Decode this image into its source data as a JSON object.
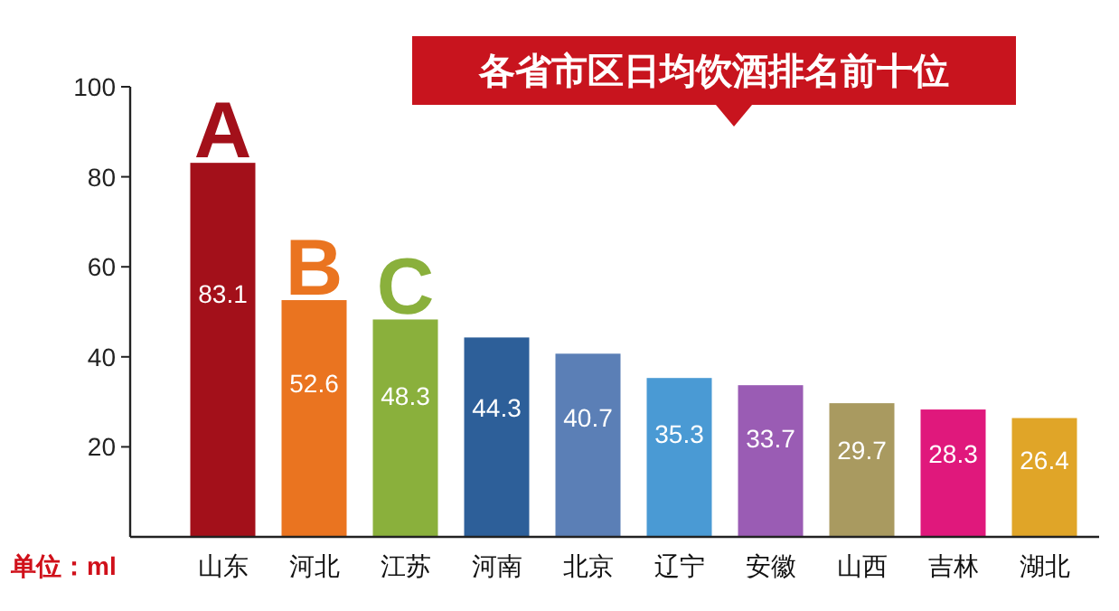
{
  "chart_data": {
    "type": "bar",
    "title": "各省市区日均饮酒排名前十位",
    "categories": [
      "山东",
      "河北",
      "江苏",
      "河南",
      "北京",
      "辽宁",
      "安徽",
      "山西",
      "吉林",
      "湖北"
    ],
    "values": [
      83.1,
      52.6,
      48.3,
      44.3,
      40.7,
      35.3,
      33.7,
      29.7,
      28.3,
      26.4
    ],
    "colors": [
      "#a3101a",
      "#ea7420",
      "#8ab03c",
      "#2d5f99",
      "#5b7fb6",
      "#4a9ad4",
      "#9a5cb4",
      "#a99a60",
      "#e0187c",
      "#e0a528"
    ],
    "ylim": [
      0,
      100
    ],
    "yticks": [
      20,
      40,
      60,
      80,
      100
    ],
    "data_labels": true,
    "annotations": [
      {
        "text": "A",
        "x": "山东",
        "y": 83.1
      },
      {
        "text": "B",
        "x": "河北",
        "y": 52.6
      },
      {
        "text": "C",
        "x": "江苏",
        "y": 48.3
      },
      "单位：ml"
    ]
  }
}
